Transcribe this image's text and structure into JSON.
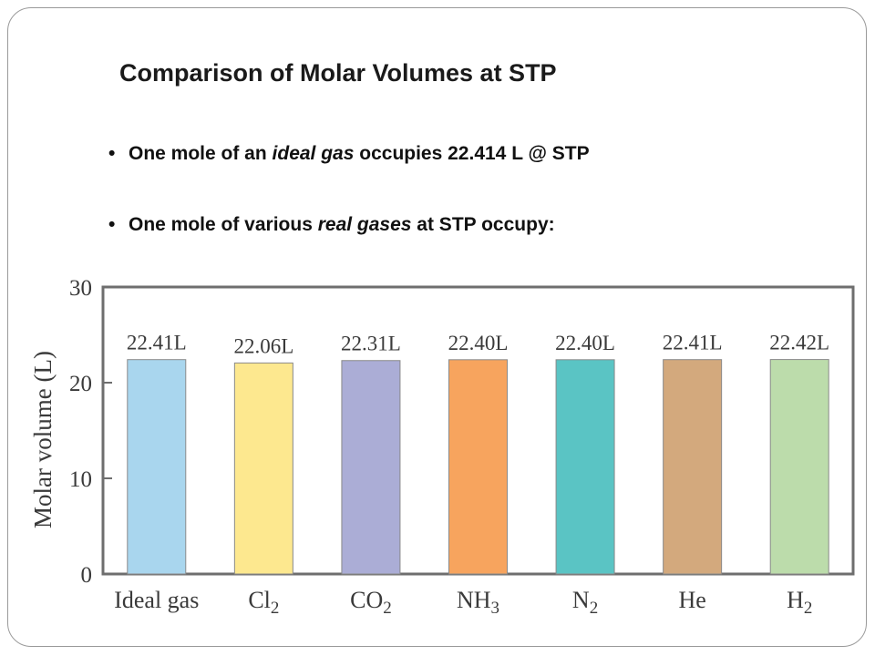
{
  "slide": {
    "title": "Comparison of Molar Volumes at STP",
    "bullets": [
      {
        "parts": [
          {
            "text": "One mole of an ",
            "italic": false
          },
          {
            "text": "ideal gas",
            "italic": true
          },
          {
            "text": " occupies 22.414 L @ STP",
            "italic": false
          }
        ]
      },
      {
        "parts": [
          {
            "text": "One mole of various ",
            "italic": false
          },
          {
            "text": "real gases",
            "italic": true
          },
          {
            "text": " at STP occupy:",
            "italic": false
          }
        ]
      }
    ]
  },
  "chart_data": {
    "type": "bar",
    "title": "",
    "xlabel": "",
    "ylabel": "Molar volume (L)",
    "ylim": [
      0,
      30
    ],
    "yticks": [
      "0",
      "10",
      "20",
      "30"
    ],
    "grid": false,
    "categories": [
      {
        "base": "Ideal gas",
        "sub": ""
      },
      {
        "base": "Cl",
        "sub": "2"
      },
      {
        "base": "CO",
        "sub": "2"
      },
      {
        "base": "NH",
        "sub": "3"
      },
      {
        "base": "N",
        "sub": "2"
      },
      {
        "base": "He",
        "sub": ""
      },
      {
        "base": "H",
        "sub": "2"
      }
    ],
    "values": [
      22.41,
      22.06,
      22.31,
      22.4,
      22.4,
      22.41,
      22.42
    ],
    "value_labels": [
      "22.41L",
      "22.06L",
      "22.31L",
      "22.40L",
      "22.40L",
      "22.41L",
      "22.42L"
    ],
    "colors": [
      "#a9d6ee",
      "#fde88f",
      "#abadd6",
      "#f7a45e",
      "#5ac4c4",
      "#d3a97d",
      "#bcdcab"
    ]
  }
}
